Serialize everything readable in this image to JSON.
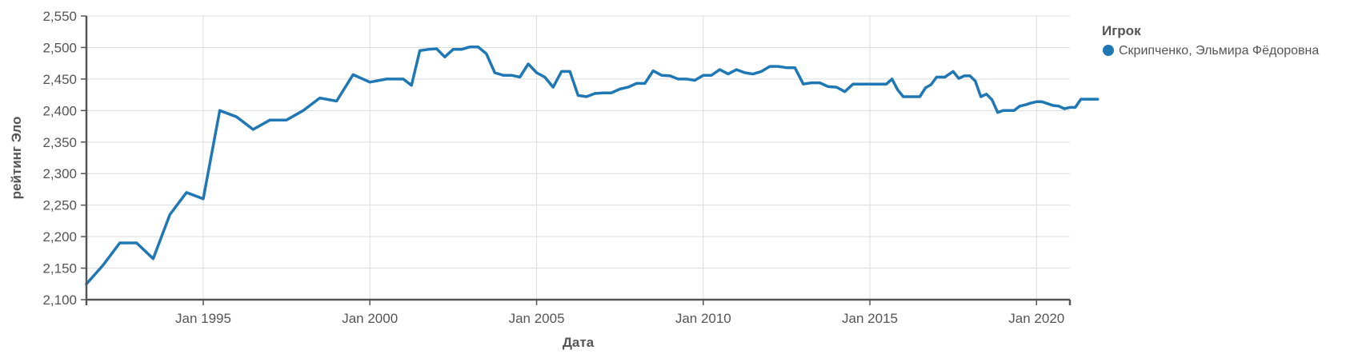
{
  "chart_data": {
    "type": "line",
    "xlabel": "Дата",
    "ylabel": "рейтинг Эло",
    "ylim": [
      2100,
      2550
    ],
    "y_ticks": [
      2100,
      2150,
      2200,
      2250,
      2300,
      2350,
      2400,
      2450,
      2500,
      2550
    ],
    "y_tick_labels": [
      "2,100",
      "2,150",
      "2,200",
      "2,250",
      "2,300",
      "2,350",
      "2,400",
      "2,450",
      "2,500",
      "2,550"
    ],
    "xlim": [
      "1991-07-01",
      "2021-01-01"
    ],
    "x_ticks": [
      "1995-01-01",
      "2000-01-01",
      "2005-01-01",
      "2010-01-01",
      "2015-01-01",
      "2020-01-01"
    ],
    "x_tick_labels": [
      "Jan 1995",
      "Jan 2000",
      "Jan 2005",
      "Jan 2010",
      "Jan 2015",
      "Jan 2020"
    ],
    "grid": true,
    "legend": {
      "title": "Игрок",
      "position": "top-right"
    },
    "series": [
      {
        "name": "Скрипченко, Эльмира Фёдоровна",
        "color": "#1f77b4",
        "points": [
          [
            "1991-07-01",
            2125
          ],
          [
            "1992-01-01",
            2155
          ],
          [
            "1992-07-01",
            2190
          ],
          [
            "1993-01-01",
            2190
          ],
          [
            "1993-07-01",
            2165
          ],
          [
            "1994-01-01",
            2235
          ],
          [
            "1994-07-01",
            2270
          ],
          [
            "1995-01-01",
            2260
          ],
          [
            "1995-07-01",
            2400
          ],
          [
            "1996-01-01",
            2390
          ],
          [
            "1996-07-01",
            2370
          ],
          [
            "1997-01-01",
            2385
          ],
          [
            "1997-07-01",
            2385
          ],
          [
            "1998-01-01",
            2400
          ],
          [
            "1998-07-01",
            2420
          ],
          [
            "1999-01-01",
            2415
          ],
          [
            "1999-07-01",
            2457
          ],
          [
            "2000-01-01",
            2445
          ],
          [
            "2000-07-01",
            2450
          ],
          [
            "2001-01-01",
            2450
          ],
          [
            "2001-04-01",
            2440
          ],
          [
            "2001-07-01",
            2495
          ],
          [
            "2001-10-01",
            2497
          ],
          [
            "2002-01-01",
            2498
          ],
          [
            "2002-04-01",
            2485
          ],
          [
            "2002-07-01",
            2497
          ],
          [
            "2002-10-01",
            2497
          ],
          [
            "2003-01-01",
            2501
          ],
          [
            "2003-04-01",
            2501
          ],
          [
            "2003-07-01",
            2490
          ],
          [
            "2003-10-01",
            2460
          ],
          [
            "2004-01-01",
            2456
          ],
          [
            "2004-04-01",
            2456
          ],
          [
            "2004-07-01",
            2453
          ],
          [
            "2004-10-01",
            2474
          ],
          [
            "2005-01-01",
            2460
          ],
          [
            "2005-04-01",
            2453
          ],
          [
            "2005-07-01",
            2437
          ],
          [
            "2005-10-01",
            2462
          ],
          [
            "2006-01-01",
            2462
          ],
          [
            "2006-04-01",
            2424
          ],
          [
            "2006-07-01",
            2422
          ],
          [
            "2006-10-01",
            2427
          ],
          [
            "2007-01-01",
            2428
          ],
          [
            "2007-04-01",
            2428
          ],
          [
            "2007-07-01",
            2434
          ],
          [
            "2007-10-01",
            2437
          ],
          [
            "2008-01-01",
            2443
          ],
          [
            "2008-04-01",
            2443
          ],
          [
            "2008-07-01",
            2463
          ],
          [
            "2008-10-01",
            2456
          ],
          [
            "2009-01-01",
            2455
          ],
          [
            "2009-04-01",
            2450
          ],
          [
            "2009-07-01",
            2450
          ],
          [
            "2009-10-01",
            2448
          ],
          [
            "2010-01-01",
            2456
          ],
          [
            "2010-04-01",
            2456
          ],
          [
            "2010-07-01",
            2465
          ],
          [
            "2010-10-01",
            2458
          ],
          [
            "2011-01-01",
            2465
          ],
          [
            "2011-04-01",
            2460
          ],
          [
            "2011-07-01",
            2458
          ],
          [
            "2011-10-01",
            2462
          ],
          [
            "2012-01-01",
            2470
          ],
          [
            "2012-04-01",
            2470
          ],
          [
            "2012-07-01",
            2468
          ],
          [
            "2012-10-01",
            2468
          ],
          [
            "2013-01-01",
            2442
          ],
          [
            "2013-04-01",
            2444
          ],
          [
            "2013-07-01",
            2444
          ],
          [
            "2013-10-01",
            2438
          ],
          [
            "2014-01-01",
            2437
          ],
          [
            "2014-04-01",
            2430
          ],
          [
            "2014-07-01",
            2442
          ],
          [
            "2014-10-01",
            2442
          ],
          [
            "2015-01-01",
            2442
          ],
          [
            "2015-04-01",
            2442
          ],
          [
            "2015-07-01",
            2442
          ],
          [
            "2015-09-01",
            2450
          ],
          [
            "2015-11-01",
            2433
          ],
          [
            "2016-01-01",
            2422
          ],
          [
            "2016-04-01",
            2422
          ],
          [
            "2016-07-01",
            2422
          ],
          [
            "2016-09-01",
            2436
          ],
          [
            "2016-11-01",
            2441
          ],
          [
            "2017-01-01",
            2453
          ],
          [
            "2017-04-01",
            2453
          ],
          [
            "2017-07-01",
            2462
          ],
          [
            "2017-09-01",
            2451
          ],
          [
            "2017-11-01",
            2455
          ],
          [
            "2018-01-01",
            2455
          ],
          [
            "2018-03-01",
            2447
          ],
          [
            "2018-05-01",
            2422
          ],
          [
            "2018-07-01",
            2426
          ],
          [
            "2018-09-01",
            2417
          ],
          [
            "2018-11-01",
            2397
          ],
          [
            "2019-01-01",
            2400
          ],
          [
            "2019-03-01",
            2400
          ],
          [
            "2019-05-01",
            2400
          ],
          [
            "2019-07-01",
            2407
          ],
          [
            "2019-09-01",
            2409
          ],
          [
            "2019-11-01",
            2412
          ],
          [
            "2020-01-01",
            2414
          ],
          [
            "2020-03-01",
            2414
          ],
          [
            "2020-05-01",
            2411
          ],
          [
            "2020-07-01",
            2408
          ],
          [
            "2020-09-01",
            2407
          ],
          [
            "2020-11-01",
            2403
          ],
          [
            "2021-01-01",
            2405
          ],
          [
            "2021-03-01",
            2405
          ],
          [
            "2021-05-01",
            2418
          ],
          [
            "2021-07-01",
            2418
          ],
          [
            "2021-09-01",
            2418
          ],
          [
            "2021-11-01",
            2418
          ]
        ]
      }
    ]
  }
}
